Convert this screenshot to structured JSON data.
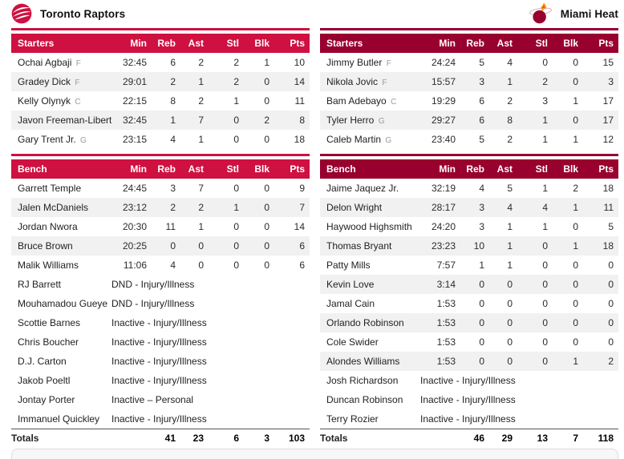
{
  "labels": {
    "starters": "Starters",
    "bench": "Bench",
    "totals": "Totals",
    "cols": [
      "Min",
      "Reb",
      "Ast",
      "Stl",
      "Blk",
      "Pts"
    ]
  },
  "colors": {
    "raptors_red": "#CE1141",
    "heat_red": "#98002E",
    "flame_yellow": "#F9A01B",
    "row_stripe": "#f1f1f1"
  },
  "icons": {
    "home_logo": "raptors-clawed-basketball-logo",
    "away_logo": "heat-flaming-basketball-logo"
  },
  "teams": [
    {
      "name": "Toronto Raptors",
      "starters": [
        {
          "name": "Ochai Agbaji",
          "pos": "F",
          "min": "32:45",
          "reb": "6",
          "ast": "2",
          "stl": "2",
          "blk": "1",
          "pts": "10"
        },
        {
          "name": "Gradey Dick",
          "pos": "F",
          "min": "29:01",
          "reb": "2",
          "ast": "1",
          "stl": "2",
          "blk": "0",
          "pts": "14"
        },
        {
          "name": "Kelly Olynyk",
          "pos": "C",
          "min": "22:15",
          "reb": "8",
          "ast": "2",
          "stl": "1",
          "blk": "0",
          "pts": "11"
        },
        {
          "name": "Javon Freeman-Liberty",
          "pos": "G",
          "min": "32:45",
          "reb": "1",
          "ast": "7",
          "stl": "0",
          "blk": "2",
          "pts": "8"
        },
        {
          "name": "Gary Trent Jr.",
          "pos": "G",
          "min": "23:15",
          "reb": "4",
          "ast": "1",
          "stl": "0",
          "blk": "0",
          "pts": "18"
        }
      ],
      "bench": [
        {
          "name": "Garrett Temple",
          "min": "24:45",
          "reb": "3",
          "ast": "7",
          "stl": "0",
          "blk": "0",
          "pts": "9"
        },
        {
          "name": "Jalen McDaniels",
          "min": "23:12",
          "reb": "2",
          "ast": "2",
          "stl": "1",
          "blk": "0",
          "pts": "7"
        },
        {
          "name": "Jordan Nwora",
          "min": "20:30",
          "reb": "11",
          "ast": "1",
          "stl": "0",
          "blk": "0",
          "pts": "14"
        },
        {
          "name": "Bruce Brown",
          "min": "20:25",
          "reb": "0",
          "ast": "0",
          "stl": "0",
          "blk": "0",
          "pts": "6"
        },
        {
          "name": "Malik Williams",
          "min": "11:06",
          "reb": "4",
          "ast": "0",
          "stl": "0",
          "blk": "0",
          "pts": "6"
        },
        {
          "name": "RJ Barrett",
          "status": "DND - Injury/Illness"
        },
        {
          "name": "Mouhamadou Gueye",
          "status": "DND - Injury/Illness"
        },
        {
          "name": "Scottie Barnes",
          "status": "Inactive - Injury/Illness"
        },
        {
          "name": "Chris Boucher",
          "status": "Inactive - Injury/Illness"
        },
        {
          "name": "D.J. Carton",
          "status": "Inactive - Injury/Illness"
        },
        {
          "name": "Jakob Poeltl",
          "status": "Inactive - Injury/Illness"
        },
        {
          "name": "Jontay Porter",
          "status": "Inactive – Personal"
        },
        {
          "name": "Immanuel Quickley",
          "status": "Inactive - Injury/Illness"
        }
      ],
      "totals": {
        "min": "",
        "reb": "41",
        "ast": "23",
        "stl": "6",
        "blk": "3",
        "pts": "103"
      }
    },
    {
      "name": "Miami Heat",
      "starters": [
        {
          "name": "Jimmy Butler",
          "pos": "F",
          "min": "24:24",
          "reb": "5",
          "ast": "4",
          "stl": "0",
          "blk": "0",
          "pts": "15"
        },
        {
          "name": "Nikola Jovic",
          "pos": "F",
          "min": "15:57",
          "reb": "3",
          "ast": "1",
          "stl": "2",
          "blk": "0",
          "pts": "3"
        },
        {
          "name": "Bam Adebayo",
          "pos": "C",
          "min": "19:29",
          "reb": "6",
          "ast": "2",
          "stl": "3",
          "blk": "1",
          "pts": "17"
        },
        {
          "name": "Tyler Herro",
          "pos": "G",
          "min": "29:27",
          "reb": "6",
          "ast": "8",
          "stl": "1",
          "blk": "0",
          "pts": "17"
        },
        {
          "name": "Caleb Martin",
          "pos": "G",
          "min": "23:40",
          "reb": "5",
          "ast": "2",
          "stl": "1",
          "blk": "1",
          "pts": "12"
        }
      ],
      "bench": [
        {
          "name": "Jaime Jaquez Jr.",
          "min": "32:19",
          "reb": "4",
          "ast": "5",
          "stl": "1",
          "blk": "2",
          "pts": "18"
        },
        {
          "name": "Delon Wright",
          "min": "28:17",
          "reb": "3",
          "ast": "4",
          "stl": "4",
          "blk": "1",
          "pts": "11"
        },
        {
          "name": "Haywood Highsmith",
          "min": "24:20",
          "reb": "3",
          "ast": "1",
          "stl": "1",
          "blk": "0",
          "pts": "5"
        },
        {
          "name": "Thomas Bryant",
          "min": "23:23",
          "reb": "10",
          "ast": "1",
          "stl": "0",
          "blk": "1",
          "pts": "18"
        },
        {
          "name": "Patty Mills",
          "min": "7:57",
          "reb": "1",
          "ast": "1",
          "stl": "0",
          "blk": "0",
          "pts": "0"
        },
        {
          "name": "Kevin Love",
          "min": "3:14",
          "reb": "0",
          "ast": "0",
          "stl": "0",
          "blk": "0",
          "pts": "0"
        },
        {
          "name": "Jamal Cain",
          "min": "1:53",
          "reb": "0",
          "ast": "0",
          "stl": "0",
          "blk": "0",
          "pts": "0"
        },
        {
          "name": "Orlando Robinson",
          "min": "1:53",
          "reb": "0",
          "ast": "0",
          "stl": "0",
          "blk": "0",
          "pts": "0"
        },
        {
          "name": "Cole Swider",
          "min": "1:53",
          "reb": "0",
          "ast": "0",
          "stl": "0",
          "blk": "0",
          "pts": "0"
        },
        {
          "name": "Alondes Williams",
          "min": "1:53",
          "reb": "0",
          "ast": "0",
          "stl": "0",
          "blk": "1",
          "pts": "2"
        },
        {
          "name": "Josh Richardson",
          "status": "Inactive - Injury/Illness"
        },
        {
          "name": "Duncan Robinson",
          "status": "Inactive - Injury/Illness"
        },
        {
          "name": "Terry Rozier",
          "status": "Inactive - Injury/Illness"
        }
      ],
      "totals": {
        "min": "",
        "reb": "46",
        "ast": "29",
        "stl": "13",
        "blk": "7",
        "pts": "118"
      }
    }
  ]
}
